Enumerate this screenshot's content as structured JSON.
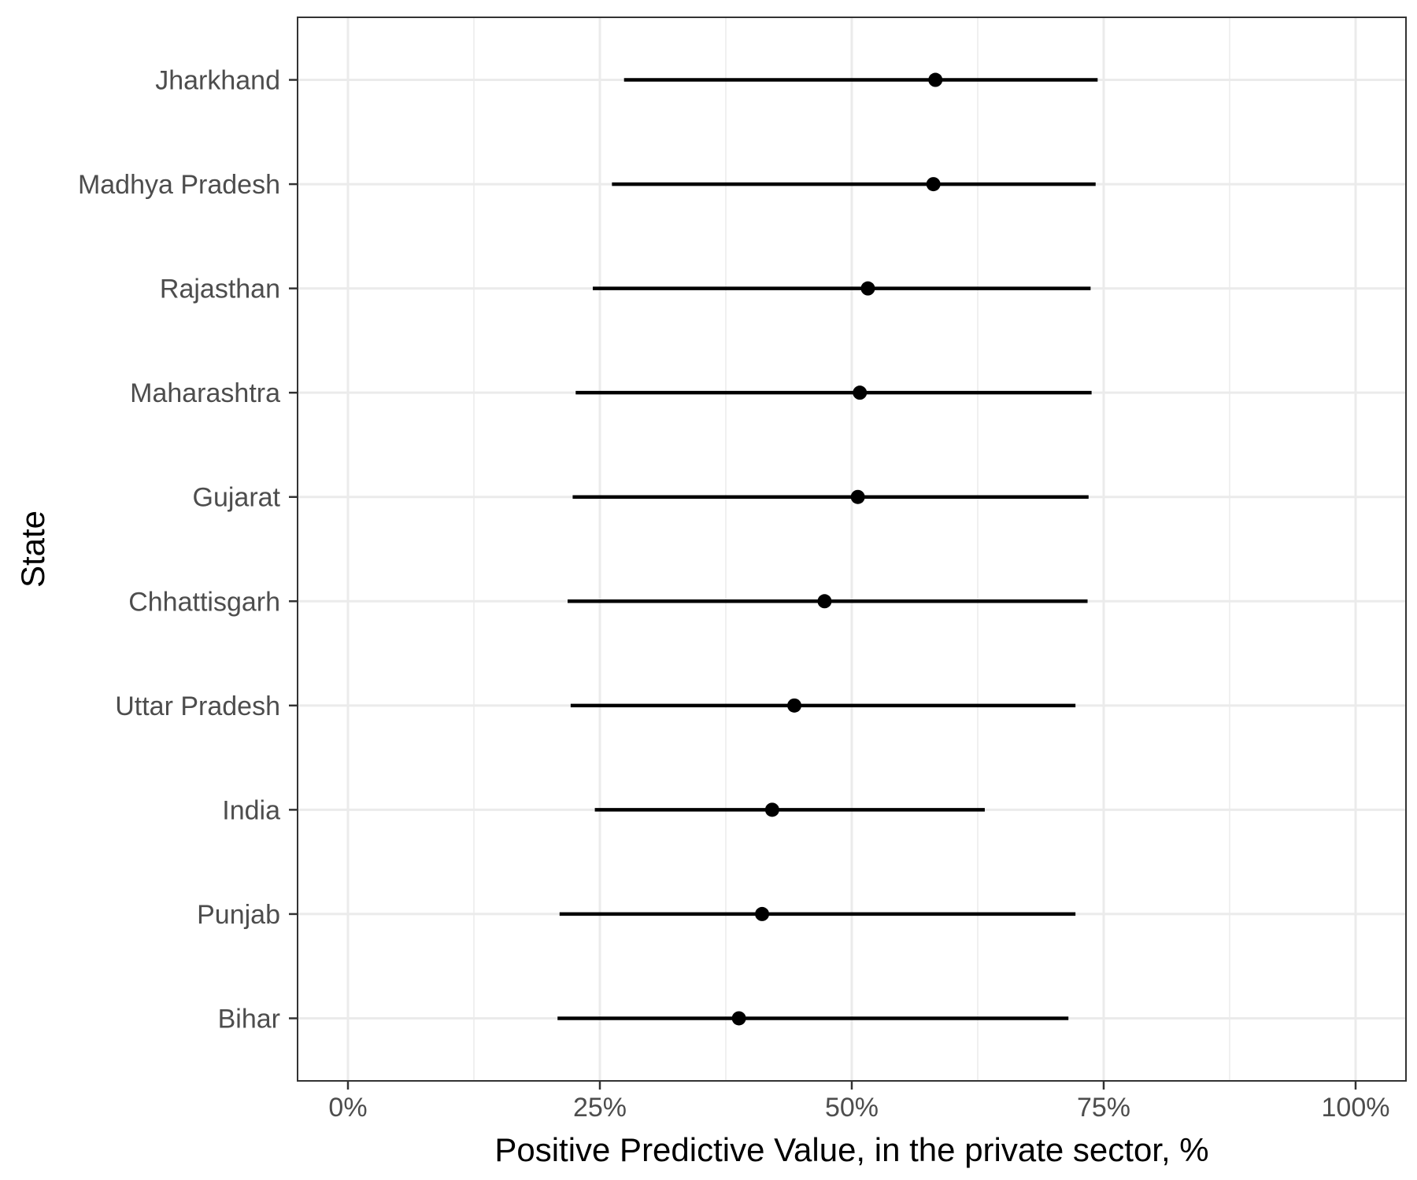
{
  "chart_data": {
    "type": "scatter",
    "subtype": "point-range",
    "xlabel": "Positive Predictive Value, in the private sector, %",
    "ylabel": "State",
    "xlim": [
      -5,
      105
    ],
    "x_ticks": [
      0,
      25,
      50,
      75,
      100
    ],
    "x_tick_labels": [
      "0%",
      "25%",
      "50%",
      "75%",
      "100%"
    ],
    "x_unit": "%",
    "grid": true,
    "categories": [
      "Jharkhand",
      "Madhya Pradesh",
      "Rajasthan",
      "Maharashtra",
      "Gujarat",
      "Chhattisgarh",
      "Uttar Pradesh",
      "India",
      "Punjab",
      "Bihar"
    ],
    "estimates": [
      58.3,
      58.1,
      51.6,
      50.8,
      50.6,
      47.3,
      44.3,
      42.1,
      41.1,
      38.8
    ],
    "lower": [
      27.4,
      26.2,
      24.3,
      22.6,
      22.3,
      21.8,
      22.1,
      24.5,
      21.0,
      20.8
    ],
    "upper": [
      74.4,
      74.2,
      73.7,
      73.8,
      73.5,
      73.4,
      72.2,
      63.2,
      72.2,
      71.5
    ],
    "colors": {
      "point": "#000000",
      "interval": "#000000",
      "grid": "#ebebeb",
      "panel_border": "#333333"
    }
  }
}
